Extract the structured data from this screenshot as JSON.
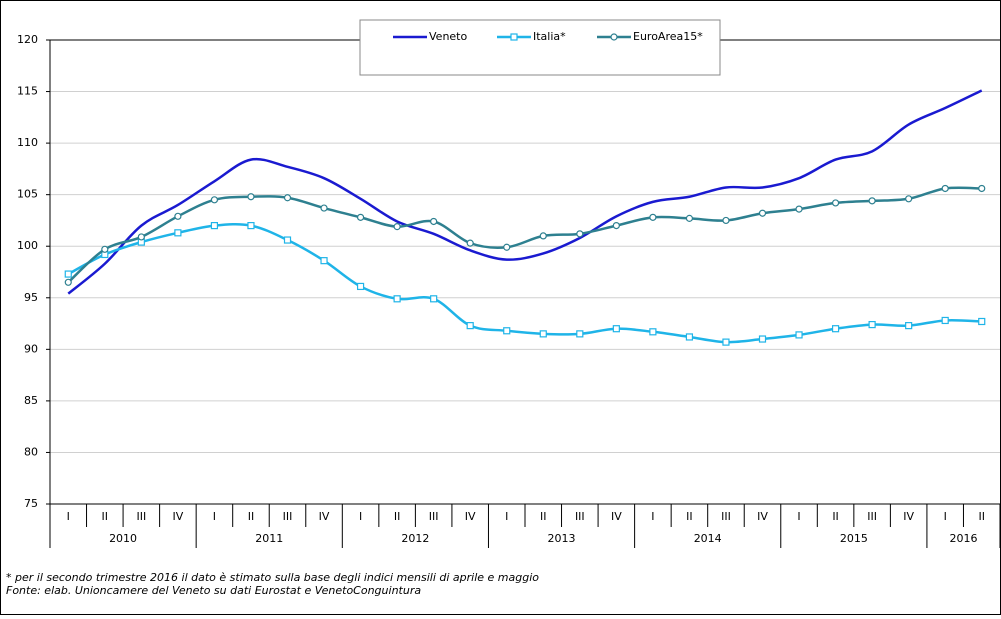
{
  "chart_data": {
    "type": "line",
    "categories": [
      "I",
      "II",
      "III",
      "IV",
      "I",
      "II",
      "III",
      "IV",
      "I",
      "II",
      "III",
      "IV",
      "I",
      "II",
      "III",
      "IV",
      "I",
      "II",
      "III",
      "IV",
      "I",
      "II",
      "III",
      "IV",
      "I",
      "II"
    ],
    "x_groups": [
      "2010",
      "2011",
      "2012",
      "2013",
      "2014",
      "2015",
      "2016"
    ],
    "series": [
      {
        "name": "Veneto",
        "color": "#1a1ad0",
        "marker": "none",
        "values": [
          95.4,
          98.3,
          102.0,
          104.0,
          106.3,
          108.4,
          107.7,
          106.6,
          104.6,
          102.4,
          101.2,
          99.6,
          98.7,
          99.3,
          100.8,
          102.9,
          104.3,
          104.8,
          105.7,
          105.7,
          106.6,
          108.4,
          109.2,
          111.8,
          113.4,
          115.1
        ]
      },
      {
        "name": "Italia*",
        "color": "#1fb4e8",
        "marker": "square",
        "values": [
          97.3,
          99.2,
          100.4,
          101.3,
          102.0,
          102.0,
          100.6,
          98.6,
          96.1,
          94.9,
          94.9,
          92.3,
          91.8,
          91.5,
          91.5,
          92.0,
          91.7,
          91.2,
          90.7,
          91.0,
          91.4,
          92.0,
          92.4,
          92.3,
          92.8,
          92.7
        ]
      },
      {
        "name": "EuroArea15*",
        "color": "#2e8090",
        "marker": "circle",
        "values": [
          96.5,
          99.7,
          100.9,
          102.9,
          104.5,
          104.8,
          104.7,
          103.7,
          102.8,
          101.9,
          102.4,
          100.3,
          99.9,
          101.0,
          101.2,
          102.0,
          102.8,
          102.7,
          102.5,
          103.2,
          103.6,
          104.2,
          104.4,
          104.6,
          105.6,
          105.6
        ]
      }
    ],
    "ylim": [
      75,
      120
    ],
    "yticks": [
      75,
      80,
      85,
      90,
      95,
      100,
      105,
      110,
      115,
      120
    ],
    "grid": true,
    "notes": [
      "* per il secondo trimestre 2016 il dato è stimato sulla base degli indici mensili di aprile e maggio",
      "Fonte: elab. Unioncamere del Veneto su dati Eurostat e VenetoConguintura"
    ]
  }
}
